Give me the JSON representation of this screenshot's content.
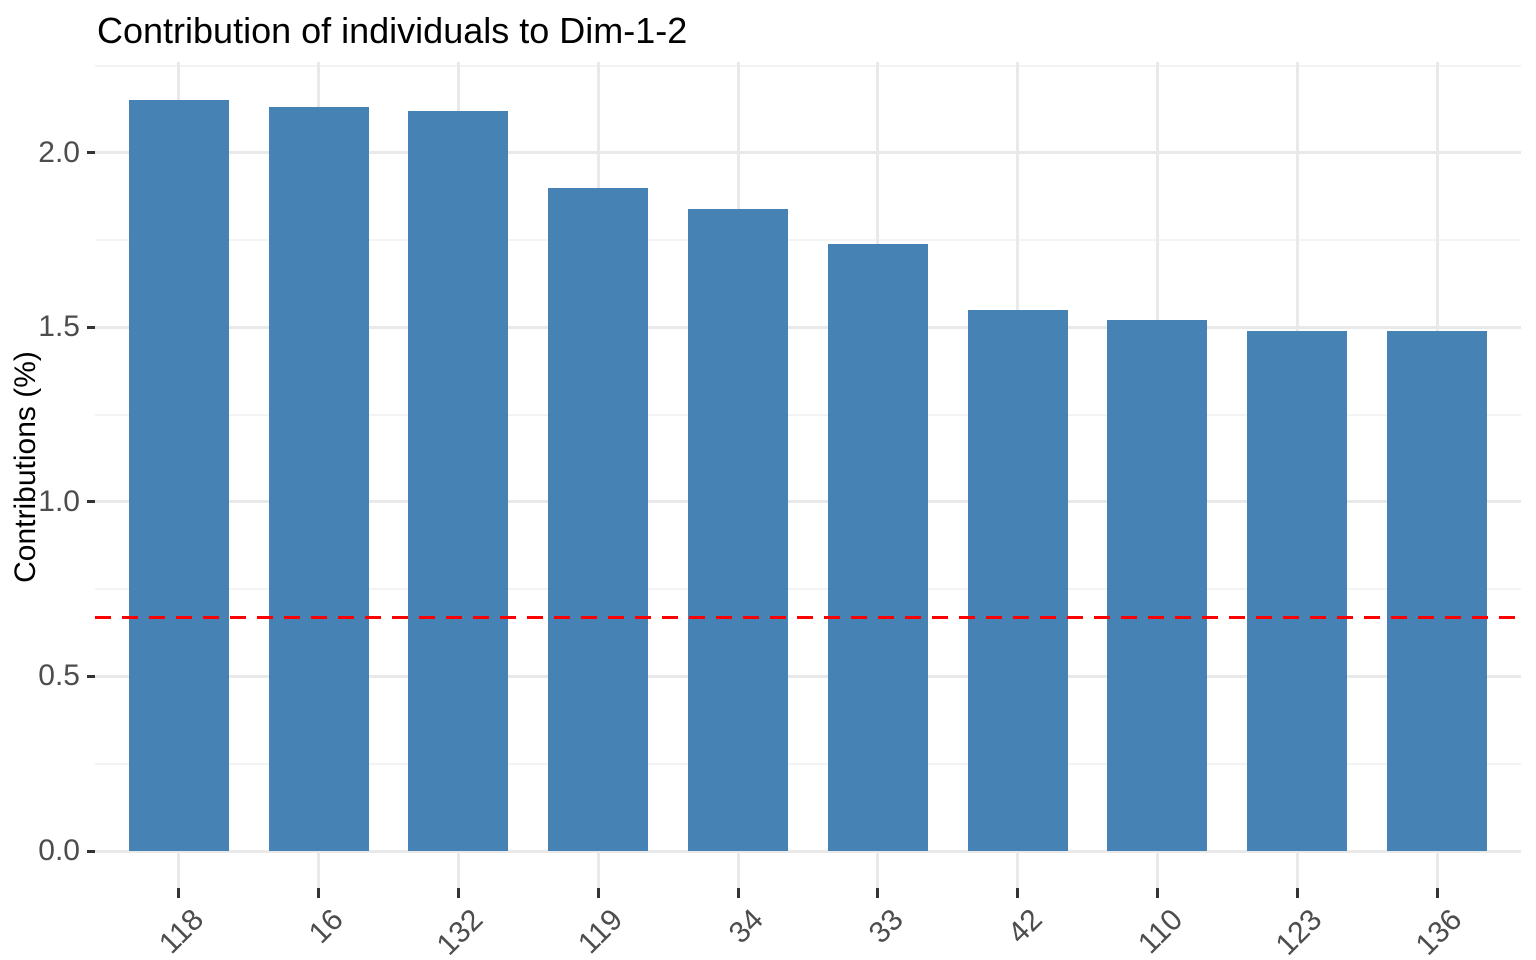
{
  "chart_data": {
    "type": "bar",
    "title": "Contribution of individuals to Dim-1-2",
    "xlabel": "",
    "ylabel": "Contributions (%)",
    "categories": [
      "118",
      "16",
      "132",
      "119",
      "34",
      "33",
      "42",
      "110",
      "123",
      "136"
    ],
    "values": [
      2.15,
      2.13,
      2.12,
      1.9,
      1.84,
      1.74,
      1.55,
      1.52,
      1.49,
      1.49
    ],
    "reference_line": {
      "value": 0.67,
      "style": "dashed",
      "color": "#FF0000"
    },
    "yticks": [
      0.0,
      0.5,
      1.0,
      1.5,
      2.0
    ],
    "ytick_labels": [
      "0.0",
      "0.5",
      "1.0",
      "1.5",
      "2.0"
    ],
    "ylim": [
      0,
      2.26
    ],
    "grid": true,
    "legend": "none",
    "bar_color": "#4682B4",
    "grid_major_color": "#E9E9E9",
    "grid_minor_color": "#F3F3F3",
    "tick_color": "#333333",
    "tick_label_color": "#4D4D4D"
  }
}
